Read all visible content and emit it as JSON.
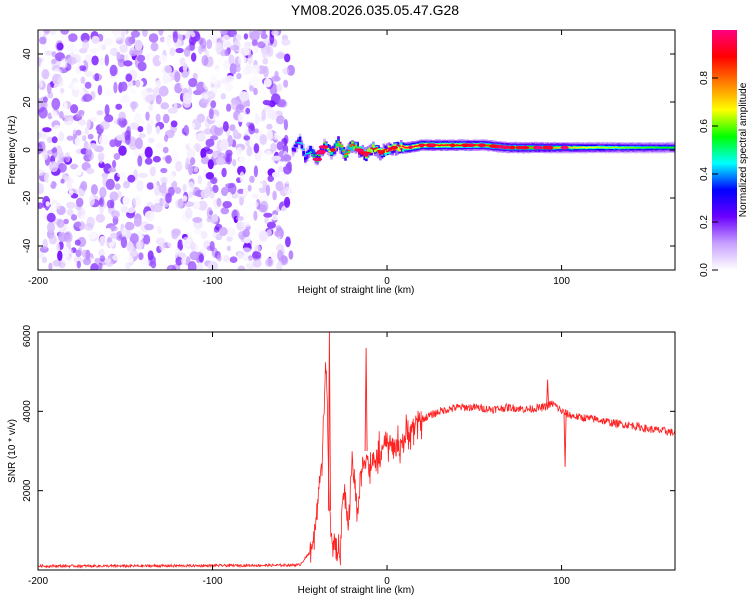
{
  "page": {
    "title": "YM08.2026.035.05.47.G28"
  },
  "chart_data": [
    {
      "type": "heatmap",
      "title": "YM08.2026.035.05.47.G28",
      "xlabel": "Height of straight line (km)",
      "ylabel": "Frequency (Hz)",
      "xlim": [
        -200,
        165
      ],
      "ylim": [
        -50,
        50
      ],
      "xticks": [
        -200,
        -100,
        0,
        100
      ],
      "yticks": [
        -40,
        -20,
        0,
        20,
        40
      ],
      "noise_region": {
        "x_from": -200,
        "x_to": -55,
        "f_from": -50,
        "f_to": 50
      },
      "signal_track": {
        "x": [
          -54,
          -50,
          -47,
          -44,
          -40,
          -36,
          -32,
          -28,
          -24,
          -20,
          -16,
          -12,
          -8,
          -4,
          0,
          4,
          8,
          12,
          20,
          30,
          40,
          55,
          70,
          80,
          90,
          100,
          120,
          140,
          160,
          165
        ],
        "freq": [
          0,
          4,
          -3,
          0,
          -4,
          2,
          -1,
          3,
          -2,
          2,
          0,
          -2,
          1,
          -1,
          0,
          1,
          1,
          1,
          2,
          2,
          2,
          2,
          1,
          1,
          1,
          1,
          1,
          1,
          1,
          1
        ],
        "amplitude": [
          0.3,
          0.45,
          0.4,
          0.5,
          0.55,
          0.6,
          0.7,
          0.75,
          0.8,
          0.85,
          0.85,
          0.9,
          0.9,
          0.9,
          0.92,
          0.95,
          0.95,
          0.95,
          0.95,
          0.92,
          0.9,
          0.85,
          0.8,
          0.8,
          0.75,
          0.72,
          0.65,
          0.6,
          0.55,
          0.55
        ]
      },
      "colorbar": {
        "label": "Normalized spectral amplitude",
        "min": 0.0,
        "max": 1.0,
        "ticks": [
          "0.0",
          "0.2",
          "0.4",
          "0.6",
          "0.8"
        ],
        "colors": [
          "#ffffff",
          "#c8a0ff",
          "#6a00ff",
          "#0000ff",
          "#00ffff",
          "#00ff00",
          "#ffff00",
          "#ff8000",
          "#ff0000",
          "#ff0080"
        ]
      }
    },
    {
      "type": "line",
      "xlabel": "Height of straight line (km)",
      "ylabel": "SNR (10 * v/v)",
      "xlim": [
        -200,
        165
      ],
      "ylim": [
        0,
        6000
      ],
      "xticks": [
        -200,
        -100,
        0,
        100
      ],
      "yticks": [
        2000,
        4000,
        6000
      ],
      "color": "#ff2020",
      "series": [
        {
          "name": "SNR",
          "x": [
            -200,
            -150,
            -100,
            -60,
            -50,
            -43,
            -40,
            -37,
            -35,
            -33,
            -31,
            -29,
            -27,
            -25,
            -22,
            -20,
            -17,
            -15,
            -12,
            -10,
            -5,
            0,
            5,
            10,
            15,
            20,
            25,
            30,
            40,
            50,
            60,
            70,
            80,
            90,
            95,
            100,
            105,
            110,
            120,
            130,
            140,
            150,
            160,
            165
          ],
          "y": [
            100,
            100,
            110,
            120,
            130,
            500,
            1500,
            3000,
            5400,
            1500,
            600,
            300,
            500,
            2000,
            1200,
            2800,
            1500,
            2400,
            3000,
            2500,
            2900,
            3200,
            3100,
            3300,
            3600,
            3800,
            3900,
            4000,
            4100,
            4100,
            4050,
            4100,
            4050,
            4100,
            4200,
            4000,
            3900,
            3850,
            3800,
            3700,
            3650,
            3550,
            3500,
            3450
          ],
          "spikes": [
            {
              "x": -33,
              "y": 6000
            },
            {
              "x": -12,
              "y": 5600
            },
            {
              "x": 92,
              "y": 4800
            },
            {
              "x": 102,
              "y": 2600
            }
          ],
          "noise_amplitude": 80
        }
      ]
    }
  ]
}
